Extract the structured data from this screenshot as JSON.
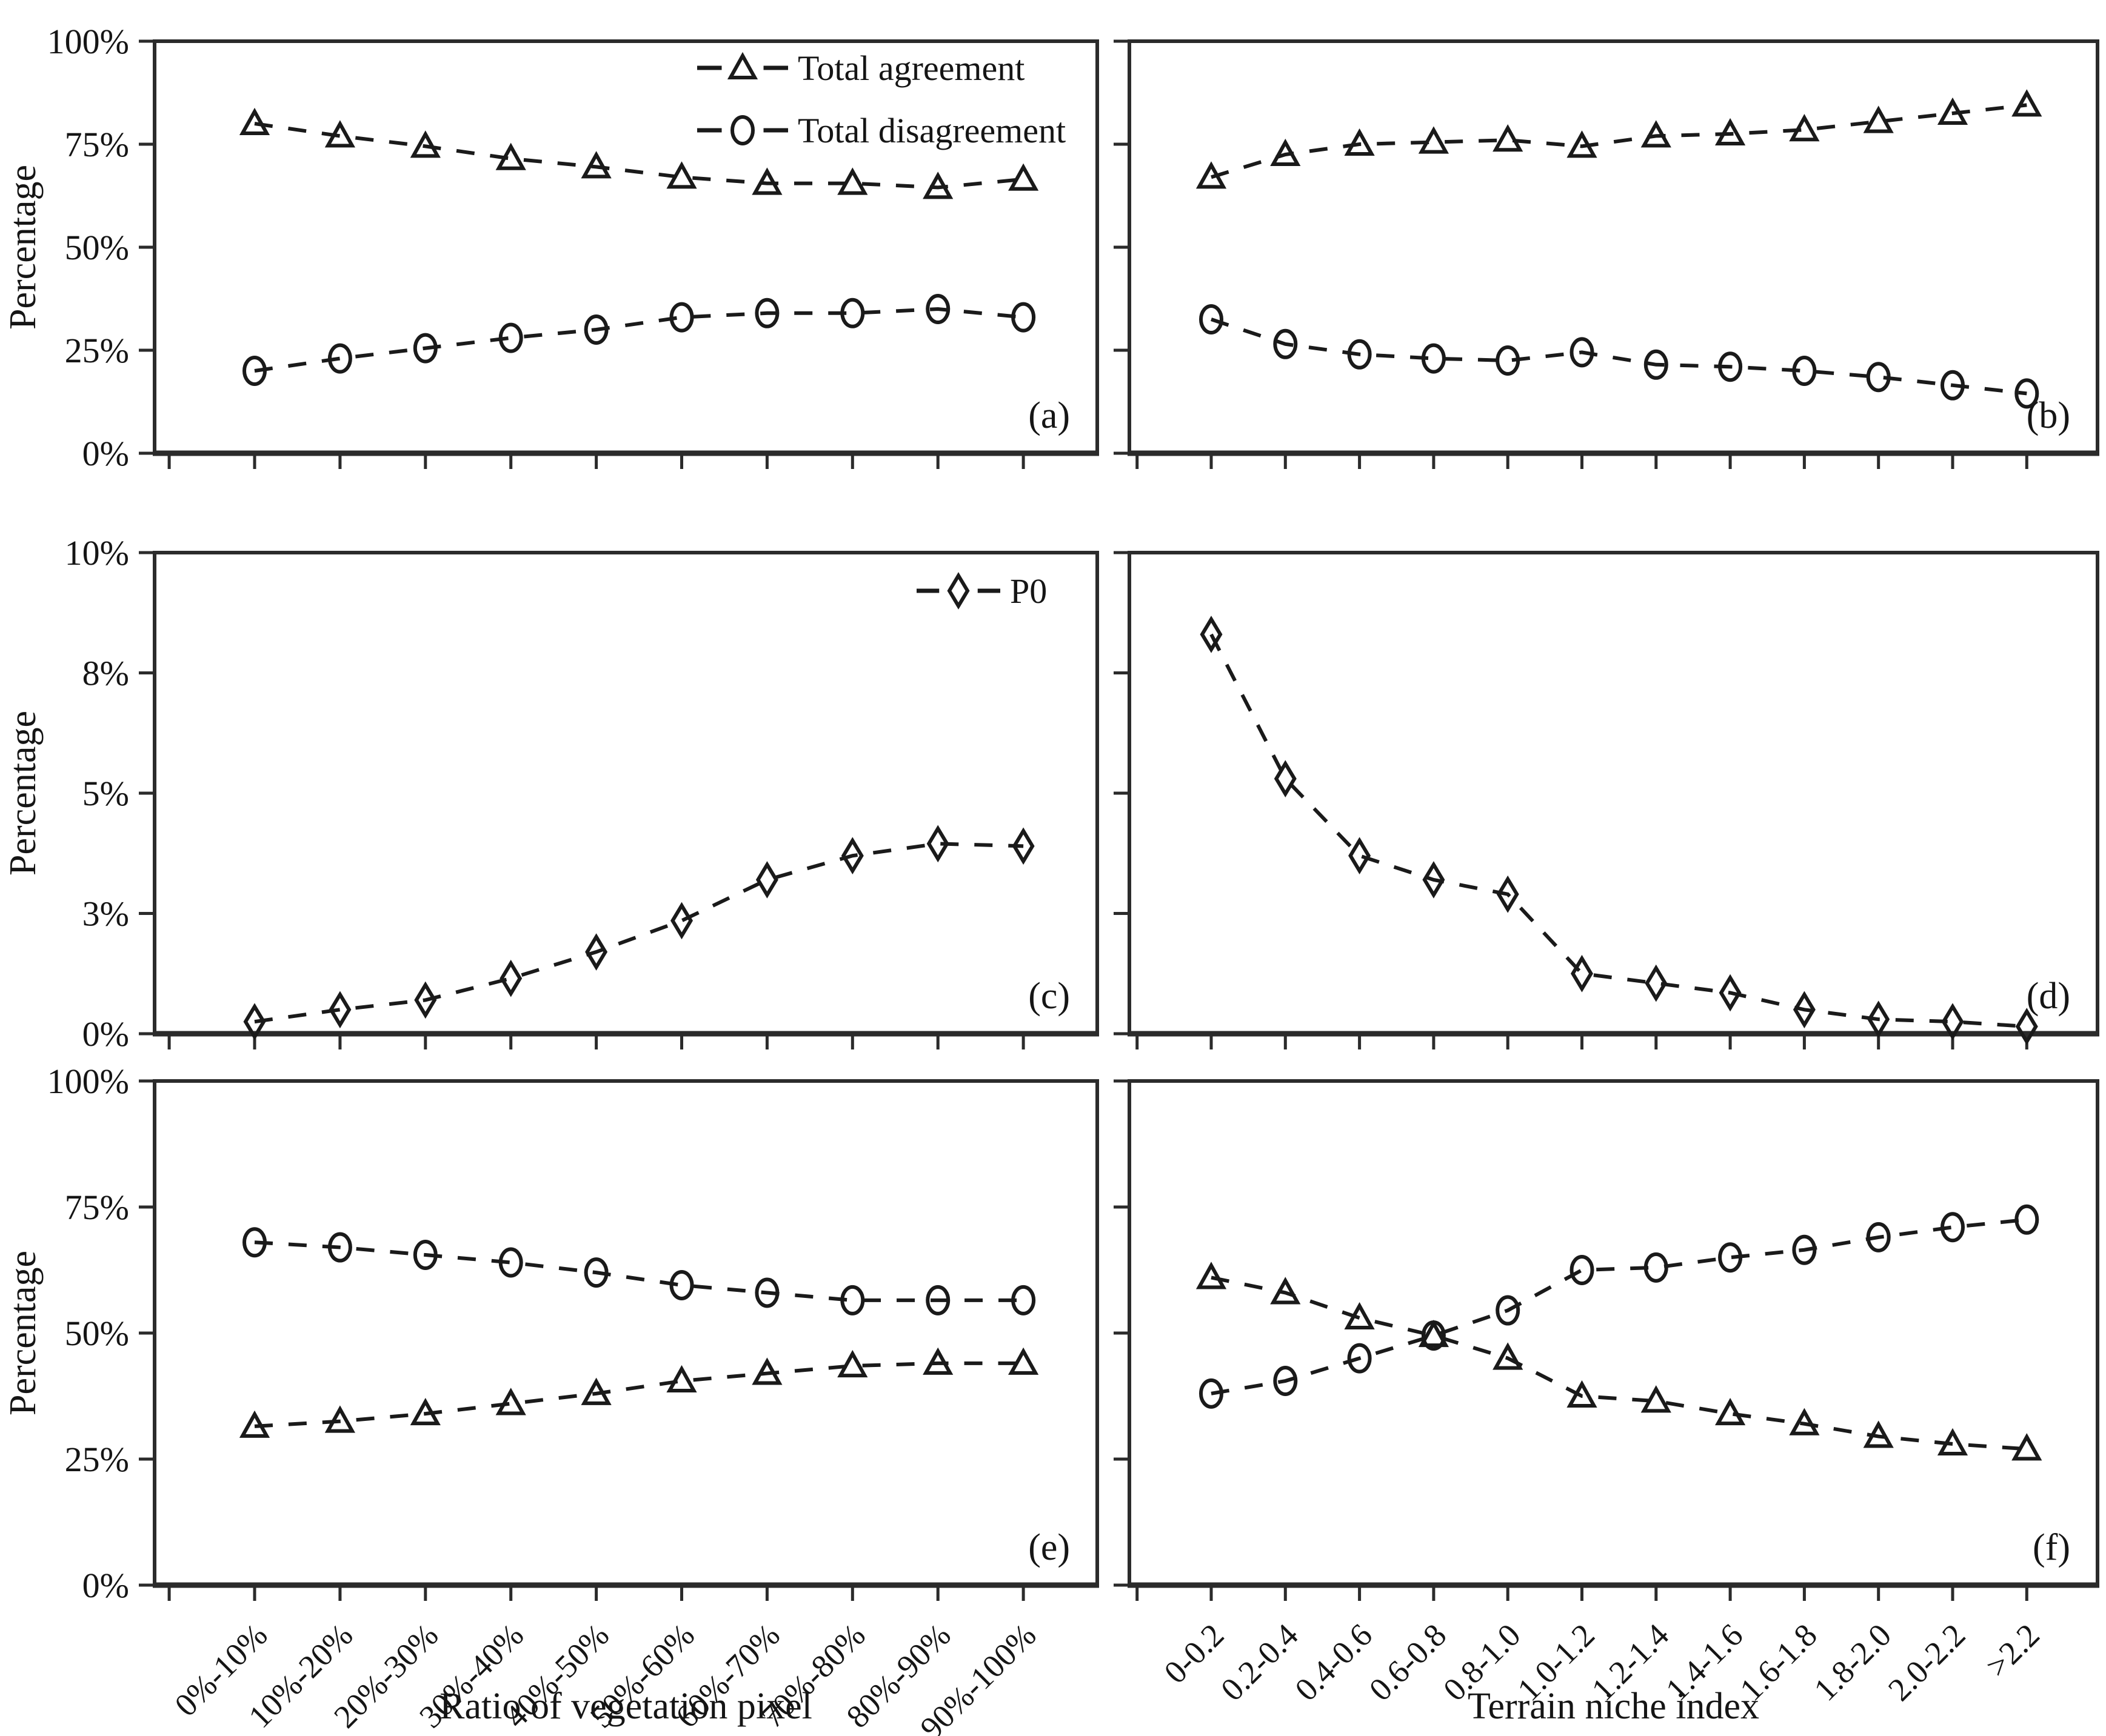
{
  "figure": {
    "background_color": "#ffffff",
    "ink_color": "#1a1a1a",
    "axis_color": "#2b2b2b",
    "y_axis_title": "Percentage",
    "x_axis_title_left": "Ratio of vegetation pixel",
    "x_axis_title_right": "Terrain niche index"
  },
  "chart_data": [
    {
      "id": "a",
      "type": "line",
      "panel_label": "(a)",
      "position": {
        "row": 0,
        "col": 0
      },
      "show_y_tick_labels": true,
      "show_x_tick_labels": false,
      "ylim": [
        0,
        100
      ],
      "y_ticks": [
        {
          "v": 0,
          "label": "0%"
        },
        {
          "v": 25,
          "label": "25%"
        },
        {
          "v": 50,
          "label": "50%"
        },
        {
          "v": 75,
          "label": "75%"
        },
        {
          "v": 100,
          "label": "100%"
        }
      ],
      "x_categories": [
        "0%-10%",
        "10%-20%",
        "20%-30%",
        "30%-40%",
        "40%-50%",
        "50%-60%",
        "60%-70%",
        "70%-80%",
        "80%-90%",
        "90%-100%"
      ],
      "legend": [
        {
          "marker": "triangle",
          "label": "Total agreement"
        },
        {
          "marker": "circle",
          "label": "Total disagreement"
        }
      ],
      "series": [
        {
          "name": "Total agreement",
          "marker": "triangle",
          "values": [
            80,
            77,
            74.5,
            71.5,
            69.5,
            67,
            65.5,
            65.5,
            64.5,
            66.5
          ]
        },
        {
          "name": "Total disagreement",
          "marker": "circle",
          "values": [
            20,
            23,
            25.5,
            28,
            30,
            33,
            34,
            34,
            35,
            33
          ]
        }
      ]
    },
    {
      "id": "b",
      "type": "line",
      "panel_label": "(b)",
      "position": {
        "row": 0,
        "col": 1
      },
      "show_y_tick_labels": false,
      "show_x_tick_labels": false,
      "ylim": [
        0,
        100
      ],
      "y_ticks": [
        {
          "v": 0,
          "label": "0%"
        },
        {
          "v": 25,
          "label": "25%"
        },
        {
          "v": 50,
          "label": "50%"
        },
        {
          "v": 75,
          "label": "75%"
        },
        {
          "v": 100,
          "label": "100%"
        }
      ],
      "x_categories": [
        "0-0.2",
        "0.2-0.4",
        "0.4-0.6",
        "0.6-0.8",
        "0.8-1.0",
        "1.0-1.2",
        "1.2-1.4",
        "1.4-1.6",
        "1.6-1.8",
        "1.8-2.0",
        "2.0-2.2",
        ">2.2"
      ],
      "legend": [],
      "series": [
        {
          "name": "Total agreement",
          "marker": "triangle",
          "values": [
            67,
            72.5,
            75,
            75.5,
            76,
            74.5,
            77,
            77.5,
            78.5,
            80.5,
            82.5,
            84.5
          ]
        },
        {
          "name": "Total disagreement",
          "marker": "circle",
          "values": [
            32.5,
            26.5,
            24,
            23,
            22.5,
            24.5,
            21.5,
            21,
            20,
            18.5,
            16.5,
            14.5
          ]
        }
      ]
    },
    {
      "id": "c",
      "type": "line",
      "panel_label": "(c)",
      "position": {
        "row": 1,
        "col": 0
      },
      "show_y_tick_labels": true,
      "show_x_tick_labels": false,
      "ylim": [
        0,
        10
      ],
      "y_ticks": [
        {
          "v": 0,
          "label": "0%"
        },
        {
          "v": 2.5,
          "label": "3%"
        },
        {
          "v": 5,
          "label": "5%"
        },
        {
          "v": 7.5,
          "label": "8%"
        },
        {
          "v": 10,
          "label": "10%"
        }
      ],
      "x_categories": [
        "0%-10%",
        "10%-20%",
        "20%-30%",
        "30%-40%",
        "40%-50%",
        "50%-60%",
        "60%-70%",
        "70%-80%",
        "80%-90%",
        "90%-100%"
      ],
      "legend": [
        {
          "marker": "diamond",
          "label": "P0"
        }
      ],
      "series": [
        {
          "name": "P0",
          "marker": "diamond",
          "values": [
            0.25,
            0.5,
            0.7,
            1.15,
            1.7,
            2.35,
            3.2,
            3.7,
            3.95,
            3.9
          ]
        }
      ]
    },
    {
      "id": "d",
      "type": "line",
      "panel_label": "(d)",
      "position": {
        "row": 1,
        "col": 1
      },
      "show_y_tick_labels": false,
      "show_x_tick_labels": false,
      "ylim": [
        0,
        10
      ],
      "y_ticks": [
        {
          "v": 0,
          "label": "0%"
        },
        {
          "v": 2.5,
          "label": "3%"
        },
        {
          "v": 5,
          "label": "5%"
        },
        {
          "v": 7.5,
          "label": "8%"
        },
        {
          "v": 10,
          "label": "10%"
        }
      ],
      "x_categories": [
        "0-0.2",
        "0.2-0.4",
        "0.4-0.6",
        "0.6-0.8",
        "0.8-1.0",
        "1.0-1.2",
        "1.2-1.4",
        "1.4-1.6",
        "1.6-1.8",
        "1.8-2.0",
        "2.0-2.2",
        ">2.2"
      ],
      "legend": [],
      "series": [
        {
          "name": "P0",
          "marker": "diamond",
          "values": [
            8.3,
            5.3,
            3.7,
            3.2,
            2.9,
            1.25,
            1.05,
            0.85,
            0.5,
            0.3,
            0.25,
            0.15
          ]
        }
      ]
    },
    {
      "id": "e",
      "type": "line",
      "panel_label": "(e)",
      "position": {
        "row": 2,
        "col": 0
      },
      "show_y_tick_labels": true,
      "show_x_tick_labels": true,
      "ylim": [
        0,
        100
      ],
      "y_ticks": [
        {
          "v": 0,
          "label": "0%"
        },
        {
          "v": 25,
          "label": "25%"
        },
        {
          "v": 50,
          "label": "50%"
        },
        {
          "v": 75,
          "label": "75%"
        },
        {
          "v": 100,
          "label": "100%"
        }
      ],
      "x_categories": [
        "0%-10%",
        "10%-20%",
        "20%-30%",
        "30%-40%",
        "40%-50%",
        "50%-60%",
        "60%-70%",
        "70%-80%",
        "80%-90%",
        "90%-100%"
      ],
      "legend": [],
      "series": [
        {
          "name": "Total disagreement",
          "marker": "circle",
          "values": [
            68,
            67,
            65.5,
            64,
            62,
            59.5,
            58,
            56.5,
            56.5,
            56.5
          ]
        },
        {
          "name": "Total agreement",
          "marker": "triangle",
          "values": [
            31.5,
            32.5,
            34,
            36,
            38,
            40.5,
            42,
            43.5,
            44,
            44
          ]
        }
      ]
    },
    {
      "id": "f",
      "type": "line",
      "panel_label": "(f)",
      "position": {
        "row": 2,
        "col": 1
      },
      "show_y_tick_labels": false,
      "show_x_tick_labels": true,
      "ylim": [
        0,
        100
      ],
      "y_ticks": [
        {
          "v": 0,
          "label": "0%"
        },
        {
          "v": 25,
          "label": "25%"
        },
        {
          "v": 50,
          "label": "50%"
        },
        {
          "v": 75,
          "label": "75%"
        },
        {
          "v": 100,
          "label": "100%"
        }
      ],
      "x_categories": [
        "0-0.2",
        "0.2-0.4",
        "0.4-0.6",
        "0.6-0.8",
        "0.8-1.0",
        "1.0-1.2",
        "1.2-1.4",
        "1.4-1.6",
        "1.6-1.8",
        "1.8-2.0",
        "2.0-2.2",
        ">2.2"
      ],
      "legend": [],
      "series": [
        {
          "name": "Total agreement",
          "marker": "triangle",
          "values": [
            61,
            58,
            53,
            49.5,
            45,
            37.5,
            36.5,
            34,
            32,
            29.5,
            28,
            27
          ]
        },
        {
          "name": "Total disagreement",
          "marker": "circle",
          "values": [
            38,
            40.5,
            45,
            49.5,
            54.5,
            62.5,
            63,
            65,
            66.5,
            69,
            71,
            72.5
          ]
        }
      ]
    }
  ]
}
